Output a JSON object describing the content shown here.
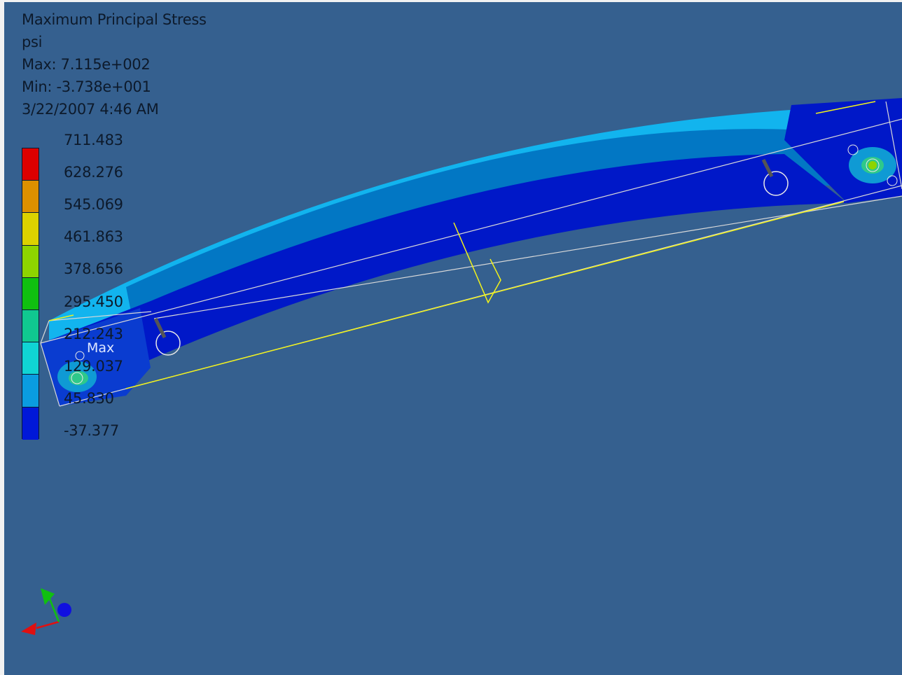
{
  "result": {
    "title": "Maximum Principal Stress",
    "units": "psi",
    "max_line": "Max: 7.115e+002",
    "min_line": "Min: -3.738e+001",
    "timestamp": "3/22/2007 4:46 AM"
  },
  "legend": {
    "values": [
      "711.483",
      "628.276",
      "545.069",
      "461.863",
      "378.656",
      "295.450",
      "212.243",
      "129.037",
      "45.830",
      "-37.377"
    ],
    "colors": [
      "#dd0000",
      "#dd9000",
      "#dcd200",
      "#8ed400",
      "#10c010",
      "#10c890",
      "#10d4d4",
      "#0a9ce0",
      "#0018d8"
    ]
  },
  "model": {
    "max_marker_label": "Max",
    "colors": {
      "background": "#35608f",
      "top_face": "#12b4ee",
      "mid_band": "#0277c4",
      "low_stress": "#0018c8",
      "edge_lines": "#d9d9d9",
      "constraint_lines": "#f2f21a"
    }
  },
  "triad": {
    "x_color": "#e01010",
    "y_color": "#10c010",
    "z_color": "#1010e0"
  }
}
